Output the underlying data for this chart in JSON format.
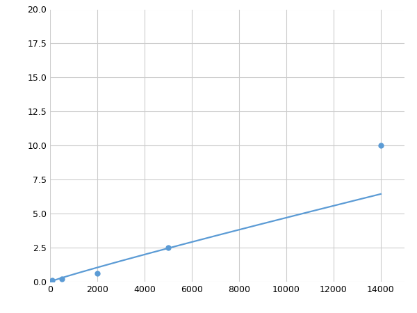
{
  "x_data": [
    100,
    500,
    2000,
    5000,
    14000
  ],
  "y_data": [
    0.1,
    0.2,
    0.6,
    2.5,
    10.0
  ],
  "line_color": "#5b9bd5",
  "marker_color": "#5b9bd5",
  "marker_size": 6,
  "line_width": 1.6,
  "xlim": [
    0,
    15000
  ],
  "ylim": [
    0,
    20.0
  ],
  "xticks": [
    0,
    2000,
    4000,
    6000,
    8000,
    10000,
    12000,
    14000
  ],
  "yticks": [
    0.0,
    2.5,
    5.0,
    7.5,
    10.0,
    12.5,
    15.0,
    17.5,
    20.0
  ],
  "grid_color": "#cccccc",
  "background_color": "#ffffff",
  "figsize": [
    6.0,
    4.5
  ],
  "dpi": 100
}
